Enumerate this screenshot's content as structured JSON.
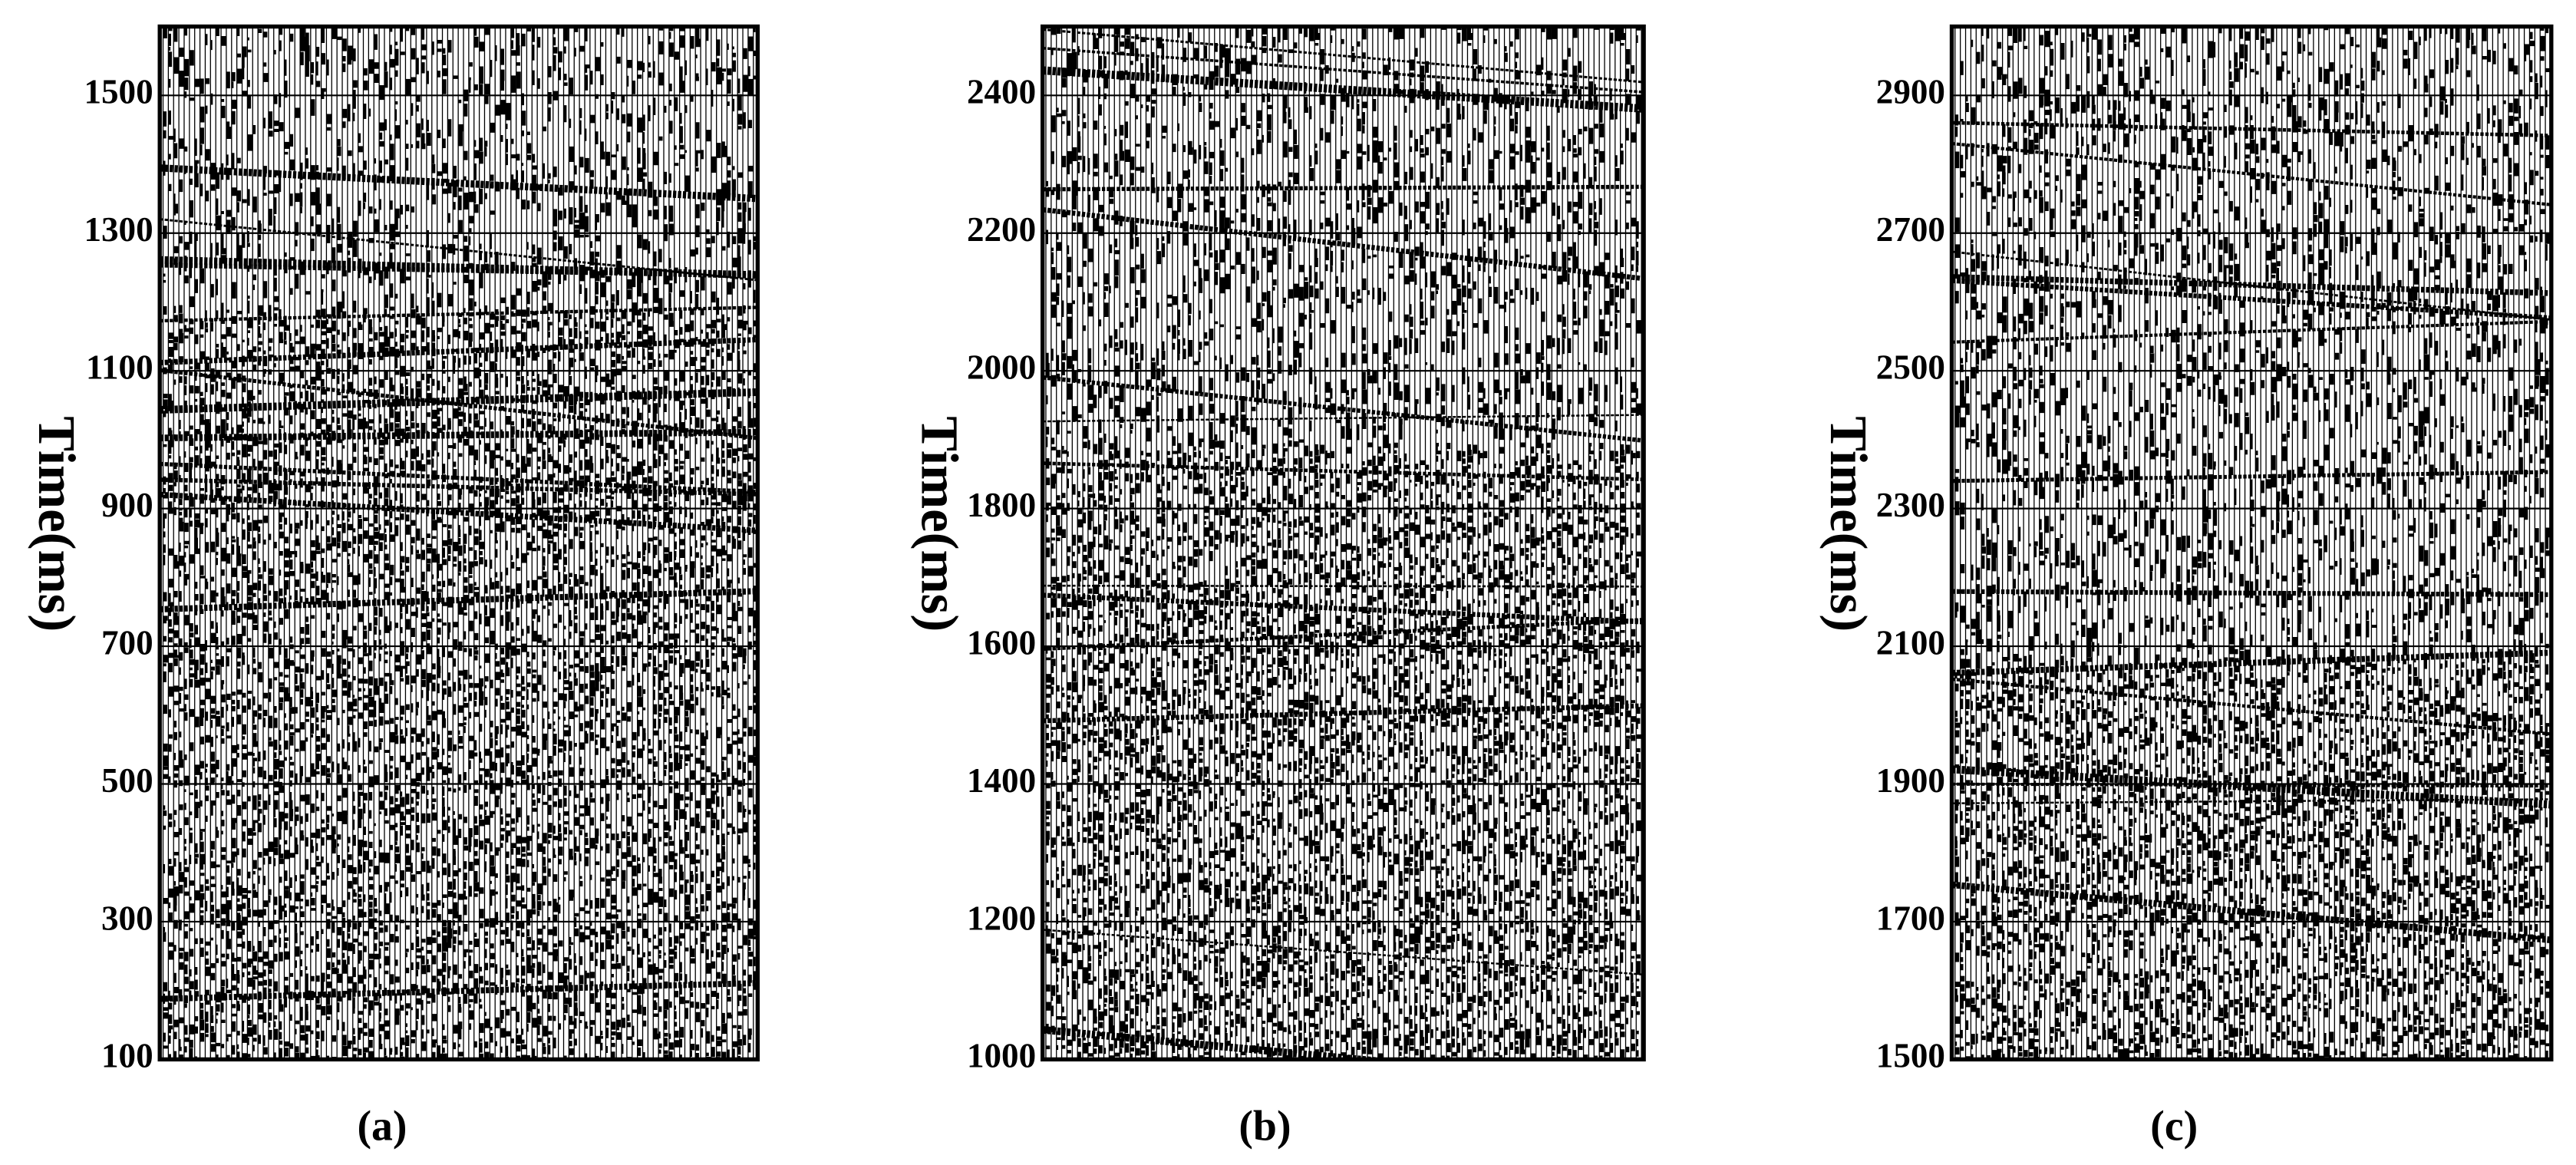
{
  "chart_data": [
    {
      "type": "seismic",
      "caption": "(a)",
      "y_label": "Time(ms)",
      "ylim": [
        100,
        1600
      ],
      "yticks": [
        100,
        300,
        500,
        700,
        900,
        1100,
        1300,
        1500
      ],
      "grid": true
    },
    {
      "type": "seismic",
      "caption": "(b)",
      "y_label": "Time(ms)",
      "ylim": [
        1000,
        2500
      ],
      "yticks": [
        1000,
        1200,
        1400,
        1600,
        1800,
        2000,
        2200,
        2400
      ],
      "grid": true
    },
    {
      "type": "seismic",
      "caption": "(c)",
      "y_label": "Time(ms)",
      "ylim": [
        1500,
        3000
      ],
      "yticks": [
        1500,
        1700,
        1900,
        2100,
        2300,
        2500,
        2700,
        2900
      ],
      "grid": true
    }
  ]
}
